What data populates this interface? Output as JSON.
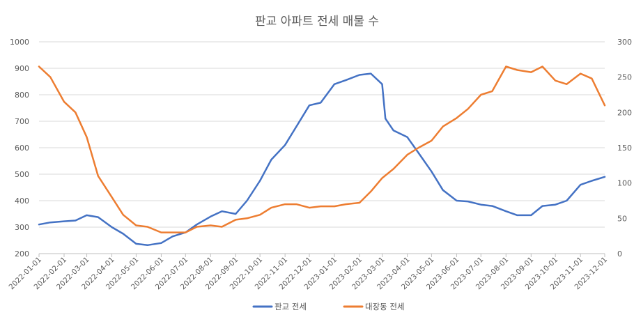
{
  "chart_data": {
    "type": "line",
    "title": "판교 아파트 전세 매물 수",
    "y_left": {
      "range": [
        200,
        1000
      ],
      "ticks": [
        200,
        300,
        400,
        500,
        600,
        700,
        800,
        900,
        1000
      ]
    },
    "y_right": {
      "range": [
        0,
        300
      ],
      "ticks": [
        0,
        50,
        100,
        150,
        200,
        250,
        300
      ]
    },
    "x_ticks": [
      "2022-01-01",
      "2022-02-01",
      "2022-03-01",
      "2022-04-01",
      "2022-05-01",
      "2022-06-01",
      "2022-07-01",
      "2022-08-01",
      "2022-09-01",
      "2022-10-01",
      "2022-11-01",
      "2022-12-01",
      "2023-01-01",
      "2023-02-01",
      "2023-03-01",
      "2023-04-01",
      "2023-05-01",
      "2023-06-01",
      "2023-07-01",
      "2023-08-01",
      "2023-09-01",
      "2023-10-01",
      "2023-11-01",
      "2023-12-01"
    ],
    "grid": true,
    "legend_position": "bottom",
    "series": [
      {
        "name": "판교 전세",
        "axis": "left",
        "color": "#4472C4",
        "x": [
          "2022-01-01",
          "2022-01-15",
          "2022-02-01",
          "2022-02-15",
          "2022-03-01",
          "2022-03-15",
          "2022-04-01",
          "2022-04-15",
          "2022-05-01",
          "2022-05-15",
          "2022-06-01",
          "2022-06-15",
          "2022-07-01",
          "2022-07-15",
          "2022-08-01",
          "2022-08-15",
          "2022-09-01",
          "2022-09-15",
          "2022-10-01",
          "2022-10-15",
          "2022-11-01",
          "2022-11-15",
          "2022-12-01",
          "2022-12-15",
          "2023-01-01",
          "2023-01-15",
          "2023-02-01",
          "2023-02-15",
          "2023-03-01",
          "2023-03-05",
          "2023-03-15",
          "2023-04-01",
          "2023-04-15",
          "2023-05-01",
          "2023-05-15",
          "2023-06-01",
          "2023-06-15",
          "2023-07-01",
          "2023-07-15",
          "2023-08-01",
          "2023-08-15",
          "2023-09-01",
          "2023-09-15",
          "2023-10-01",
          "2023-10-15",
          "2023-11-01",
          "2023-11-15",
          "2023-12-01"
        ],
        "values": [
          310,
          318,
          322,
          325,
          345,
          338,
          300,
          275,
          237,
          232,
          240,
          265,
          280,
          310,
          340,
          360,
          350,
          400,
          475,
          555,
          610,
          680,
          760,
          770,
          840,
          855,
          875,
          880,
          840,
          710,
          665,
          640,
          580,
          510,
          440,
          400,
          397,
          385,
          380,
          360,
          345,
          345,
          380,
          385,
          400,
          460,
          475,
          490
        ]
      },
      {
        "name": "대장동 전세",
        "axis": "right",
        "color": "#ED7D31",
        "x": [
          "2022-01-01",
          "2022-01-15",
          "2022-02-01",
          "2022-02-15",
          "2022-03-01",
          "2022-03-15",
          "2022-04-01",
          "2022-04-15",
          "2022-05-01",
          "2022-05-15",
          "2022-06-01",
          "2022-06-15",
          "2022-07-01",
          "2022-07-15",
          "2022-08-01",
          "2022-08-15",
          "2022-09-01",
          "2022-09-15",
          "2022-10-01",
          "2022-10-15",
          "2022-11-01",
          "2022-11-15",
          "2022-12-01",
          "2022-12-15",
          "2023-01-01",
          "2023-01-15",
          "2023-02-01",
          "2023-02-15",
          "2023-03-01",
          "2023-03-15",
          "2023-04-01",
          "2023-04-15",
          "2023-05-01",
          "2023-05-15",
          "2023-06-01",
          "2023-06-15",
          "2023-07-01",
          "2023-07-15",
          "2023-08-01",
          "2023-08-15",
          "2023-09-01",
          "2023-09-15",
          "2023-10-01",
          "2023-10-15",
          "2023-11-01",
          "2023-11-15",
          "2023-12-01"
        ],
        "values": [
          265,
          250,
          215,
          200,
          165,
          110,
          80,
          55,
          40,
          38,
          30,
          30,
          30,
          38,
          40,
          38,
          48,
          50,
          55,
          65,
          70,
          70,
          65,
          67,
          67,
          70,
          72,
          88,
          107,
          120,
          140,
          150,
          160,
          180,
          192,
          205,
          225,
          230,
          265,
          260,
          257,
          265,
          245,
          240,
          255,
          248,
          210
        ]
      }
    ]
  }
}
